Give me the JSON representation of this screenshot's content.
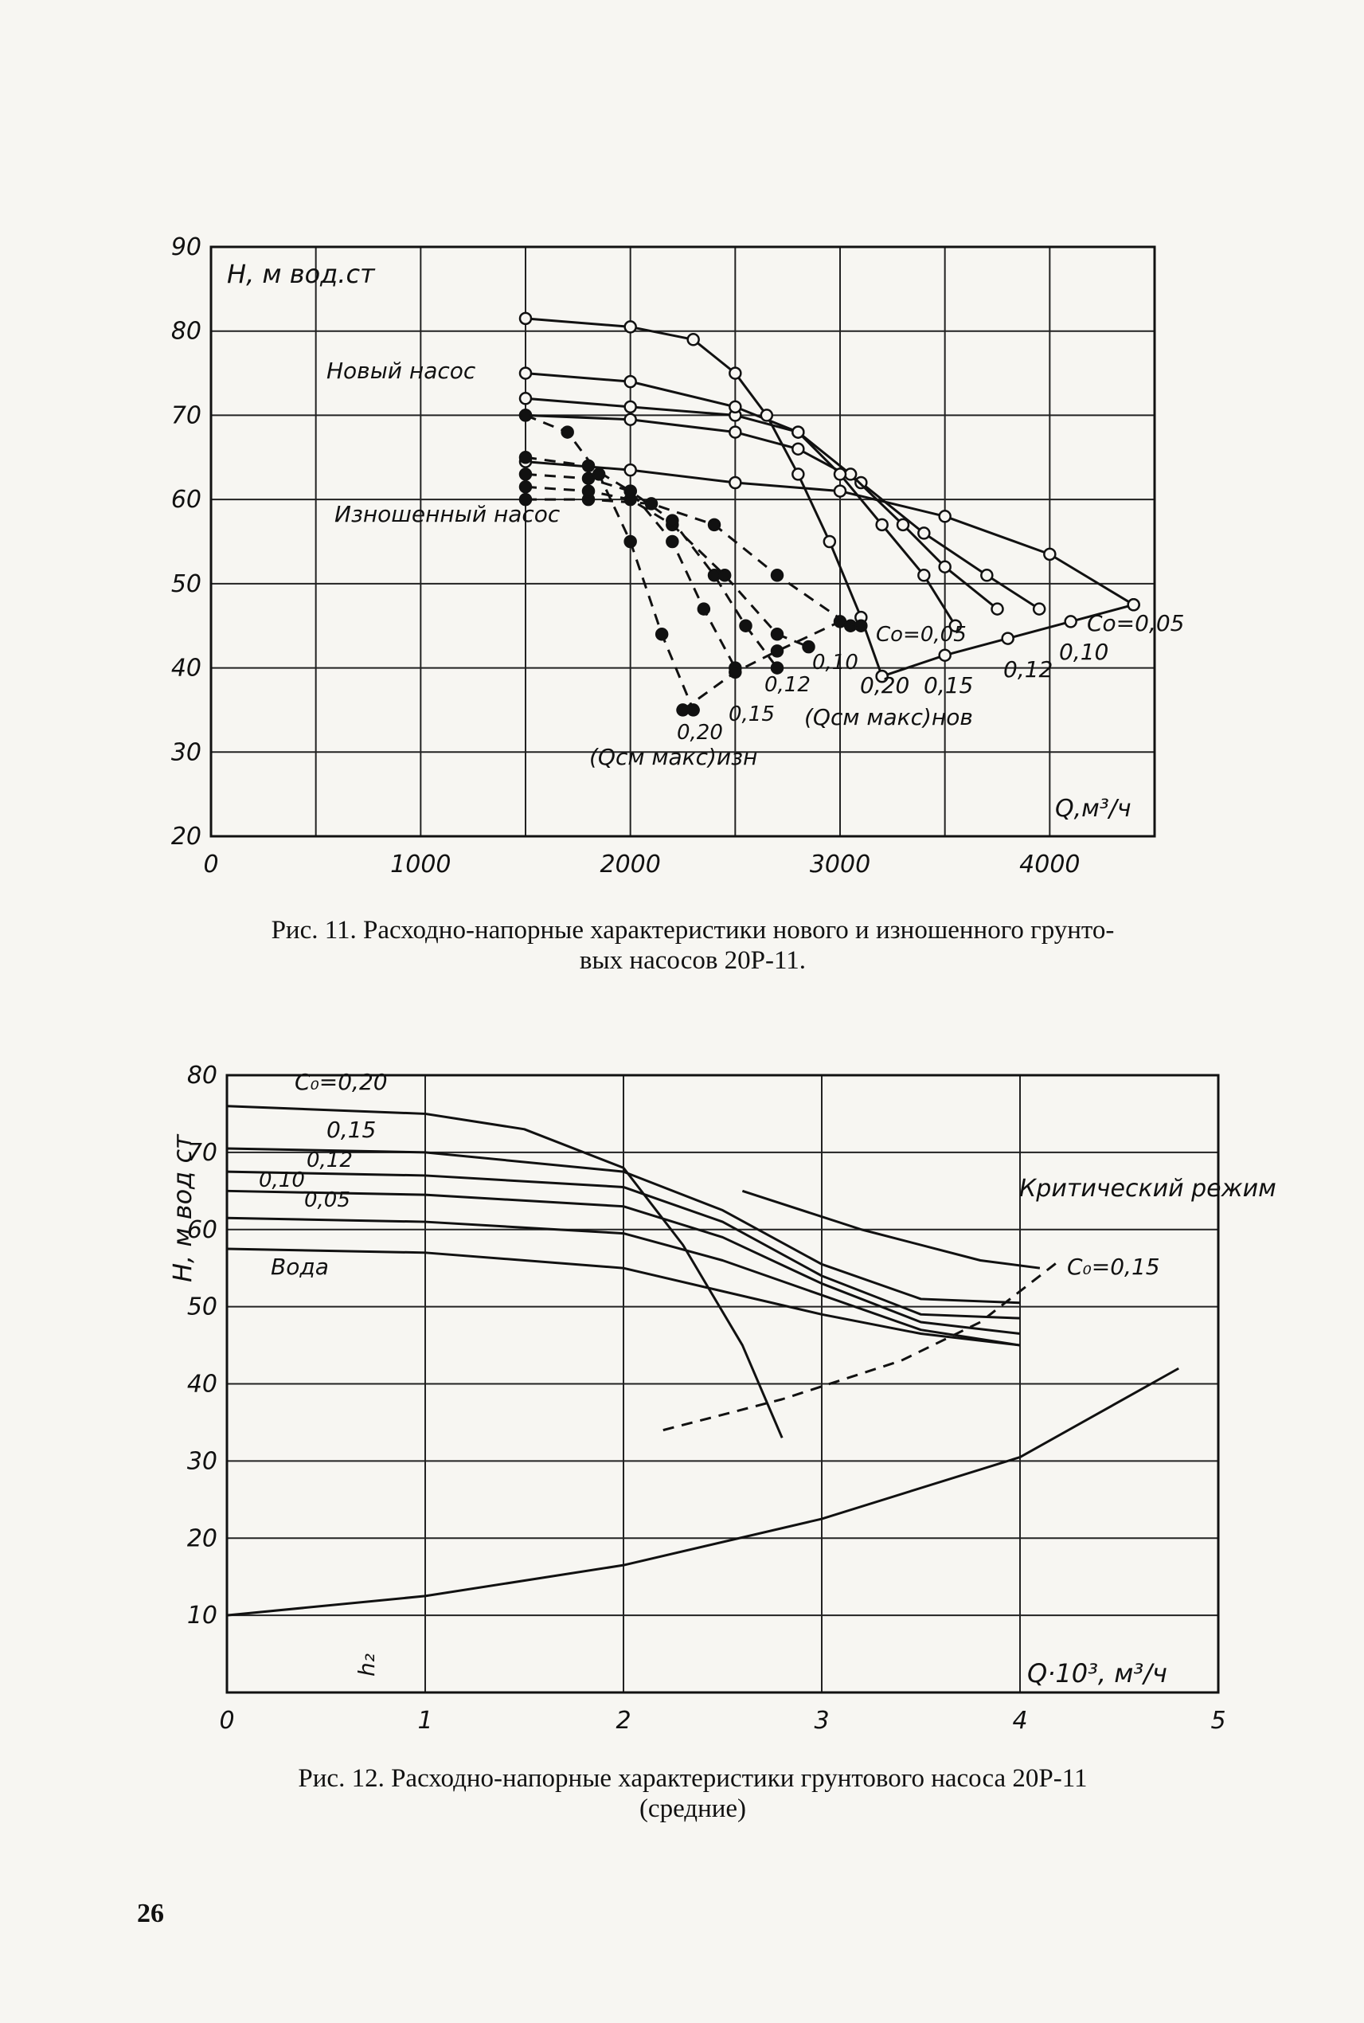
{
  "page_number": "26",
  "figures": [
    {
      "caption": "Рис. 11. Расходно-напорные характеристики нового и изношенного грунтовых насосов 20Р-11.",
      "caption_line1": "Рис. 11. Расходно-напорные характеристики нового и изношенного грунто-",
      "caption_line2": "вых насосов 20Р-11."
    },
    {
      "caption": "Рис. 12. Расходно-напорные характеристики грунтового насоса 20Р-11 (средние)",
      "caption_line1": "Рис. 12. Расходно-напорные характеристики грунтового насоса 20Р-11",
      "caption_line2": "(средние)"
    }
  ],
  "chart_data": [
    {
      "type": "line",
      "ylabel": "H, м вод.ст",
      "xlabel": "Q,м³/ч",
      "xlim": [
        0,
        4500
      ],
      "ylim": [
        20,
        90
      ],
      "xticks": [
        "0",
        "1000",
        "2000",
        "3000",
        "4000"
      ],
      "yticks": [
        "20",
        "30",
        "40",
        "50",
        "60",
        "70",
        "80",
        "90"
      ],
      "grid": true,
      "group_labels": {
        "new_pump": "Новый насос",
        "worn_pump": "Изношенный насос"
      },
      "limit_labels": {
        "new": "(Qсм макс)нов",
        "worn": "(Qсм макс)изн"
      },
      "series": [
        {
          "name": "Co=0,05",
          "group": "new",
          "x": [
            1500,
            2000,
            2500,
            3000,
            3500,
            4000,
            4400
          ],
          "y": [
            64.5,
            63.5,
            62,
            61,
            58,
            53.5,
            47.5
          ]
        },
        {
          "name": "0,10",
          "group": "new",
          "x": [
            1500,
            2000,
            2500,
            2800,
            3100,
            3400,
            3700,
            3950
          ],
          "y": [
            70,
            69.5,
            68,
            66,
            62,
            56,
            51,
            47
          ]
        },
        {
          "name": "0,12",
          "group": "new",
          "x": [
            1500,
            2000,
            2500,
            2800,
            3050,
            3300,
            3500,
            3750
          ],
          "y": [
            72,
            71,
            70,
            68,
            63,
            57,
            52,
            47
          ]
        },
        {
          "name": "0,15",
          "group": "new",
          "x": [
            1500,
            2000,
            2500,
            2800,
            3000,
            3200,
            3400,
            3550
          ],
          "y": [
            75,
            74,
            71,
            68,
            63,
            57,
            51,
            45
          ]
        },
        {
          "name": "0,20",
          "group": "new",
          "x": [
            1500,
            2000,
            2300,
            2500,
            2650,
            2800,
            2950,
            3100,
            3200
          ],
          "y": [
            81.5,
            80.5,
            79,
            75,
            70,
            63,
            55,
            46,
            39
          ]
        },
        {
          "name": "(Qсм макс)нов",
          "group": "new",
          "x": [
            3200,
            3500,
            3800,
            4100,
            4400
          ],
          "y": [
            39,
            41.5,
            43.5,
            45.5,
            47.5
          ]
        },
        {
          "name": "Co=0,05",
          "group": "worn",
          "x": [
            1500,
            1800,
            2100,
            2400,
            2700,
            3050
          ],
          "y": [
            60,
            60,
            59.5,
            57,
            51,
            45
          ]
        },
        {
          "name": "0,10",
          "group": "worn",
          "x": [
            1500,
            1800,
            2000,
            2200,
            2450,
            2700,
            2850
          ],
          "y": [
            61.5,
            61,
            60,
            57,
            51,
            44,
            42.5
          ]
        },
        {
          "name": "0,12",
          "group": "worn",
          "x": [
            1500,
            1800,
            2000,
            2200,
            2400,
            2550,
            2700
          ],
          "y": [
            63,
            62.5,
            61,
            57.5,
            51,
            45,
            40
          ]
        },
        {
          "name": "0,15",
          "group": "worn",
          "x": [
            1500,
            1800,
            2000,
            2200,
            2350,
            2500
          ],
          "y": [
            65,
            64,
            61,
            55,
            47,
            40
          ]
        },
        {
          "name": "0,20",
          "group": "worn",
          "x": [
            1500,
            1700,
            1850,
            2000,
            2150,
            2300
          ],
          "y": [
            70,
            68,
            63,
            55,
            44,
            35
          ]
        },
        {
          "name": "(Qсм макс)изн",
          "group": "worn",
          "x": [
            2250,
            2500,
            2700,
            3000,
            3100
          ],
          "y": [
            35,
            39.5,
            42,
            45.5,
            45
          ]
        }
      ]
    },
    {
      "type": "line",
      "ylabel": "H, м вод ст",
      "xlabel": "Q·10³, м³/ч",
      "xlim": [
        0,
        5
      ],
      "ylim": [
        0,
        80
      ],
      "xticks": [
        "0",
        "1",
        "2",
        "3",
        "4",
        "5"
      ],
      "yticks": [
        "10",
        "20",
        "30",
        "40",
        "50",
        "60",
        "70",
        "80"
      ],
      "grid": true,
      "annotations": {
        "critical": "Критический режим",
        "h2": "h₂"
      },
      "series": [
        {
          "name": "Вода",
          "x": [
            0,
            1,
            2,
            2.5,
            3,
            3.5,
            4
          ],
          "y": [
            57.5,
            57,
            55,
            52,
            49,
            46.5,
            45
          ]
        },
        {
          "name": "0,05",
          "x": [
            0,
            1,
            2,
            2.5,
            3,
            3.5,
            4
          ],
          "y": [
            61.5,
            61,
            59.5,
            56,
            51.5,
            47,
            45
          ]
        },
        {
          "name": "0,10",
          "x": [
            0,
            1,
            2,
            2.5,
            3,
            3.5,
            4
          ],
          "y": [
            65,
            64.5,
            63,
            59,
            53,
            48,
            46.5
          ]
        },
        {
          "name": "0,12",
          "x": [
            0,
            1,
            2,
            2.5,
            3,
            3.5,
            4
          ],
          "y": [
            67.5,
            67,
            65.5,
            61,
            54,
            49,
            48.5
          ]
        },
        {
          "name": "0,15",
          "x": [
            0,
            1,
            2,
            2.5,
            3,
            3.5,
            4
          ],
          "y": [
            70.5,
            70,
            67.5,
            62.5,
            55.5,
            51,
            50.5
          ]
        },
        {
          "name": "C₀=0,20",
          "x": [
            0,
            1,
            1.5,
            2,
            2.3,
            2.6,
            2.8
          ],
          "y": [
            76,
            75,
            73,
            68,
            58,
            45,
            33
          ]
        },
        {
          "name": "C₀=0,15",
          "x": [
            2.6,
            3.2,
            3.8,
            4.1
          ],
          "y": [
            65,
            60,
            56,
            55
          ]
        },
        {
          "name": "Критический режим",
          "x": [
            2.2,
            2.8,
            3.4,
            3.8,
            4.2
          ],
          "y": [
            34,
            38,
            43,
            48,
            56
          ]
        },
        {
          "name": "h₂",
          "x": [
            0,
            1,
            2,
            3,
            4,
            4.8
          ],
          "y": [
            10,
            12.5,
            16.5,
            22.5,
            30.5,
            42
          ]
        }
      ]
    }
  ]
}
